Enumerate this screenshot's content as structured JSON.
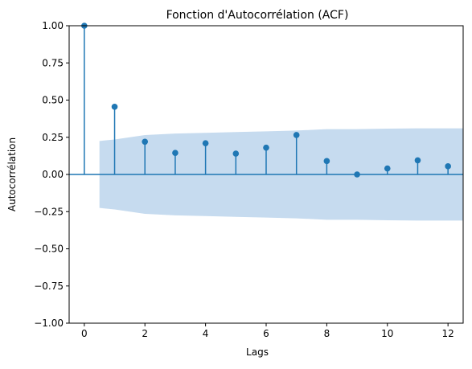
{
  "chart_data": {
    "type": "scatter",
    "title": "Fonction d'Autocorrélation (ACF)",
    "xlabel": "Lags",
    "ylabel": "Autocorrélation",
    "xlim": [
      -0.5,
      12.5
    ],
    "ylim": [
      -1.0,
      1.0
    ],
    "x_ticks": [
      0,
      2,
      4,
      6,
      8,
      10,
      12
    ],
    "x_tick_labels": [
      "0",
      "2",
      "4",
      "6",
      "8",
      "10",
      "12"
    ],
    "y_ticks": [
      -1.0,
      -0.75,
      -0.5,
      -0.25,
      0.0,
      0.25,
      0.5,
      0.75,
      1.0
    ],
    "y_tick_labels": [
      "−1.00",
      "−0.75",
      "−0.50",
      "−0.25",
      "0.00",
      "0.25",
      "0.50",
      "0.75",
      "1.00"
    ],
    "grid": false,
    "series": [
      {
        "lags": [
          0,
          1,
          2,
          3,
          4,
          5,
          6,
          7,
          8,
          9,
          10,
          11,
          12
        ],
        "values": [
          1.0,
          0.455,
          0.22,
          0.145,
          0.21,
          0.14,
          0.18,
          0.265,
          0.09,
          0.0,
          0.04,
          0.095,
          0.055
        ]
      }
    ],
    "confidence_band": {
      "lags": [
        0.5,
        1,
        2,
        3,
        4,
        5,
        6,
        7,
        8,
        9,
        10,
        11,
        12,
        12.5
      ],
      "upper": [
        0.225,
        0.235,
        0.265,
        0.275,
        0.28,
        0.285,
        0.29,
        0.295,
        0.305,
        0.305,
        0.308,
        0.31,
        0.31,
        0.31
      ]
    },
    "colors": {
      "series": "#1f77b4",
      "band": "#c6dbef",
      "zero_line": "#1f77b4"
    }
  }
}
